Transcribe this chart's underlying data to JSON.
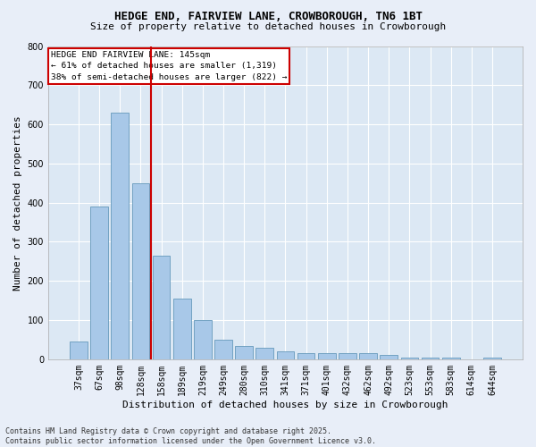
{
  "title": "HEDGE END, FAIRVIEW LANE, CROWBOROUGH, TN6 1BT",
  "subtitle": "Size of property relative to detached houses in Crowborough",
  "xlabel": "Distribution of detached houses by size in Crowborough",
  "ylabel": "Number of detached properties",
  "categories": [
    "37sqm",
    "67sqm",
    "98sqm",
    "128sqm",
    "158sqm",
    "189sqm",
    "219sqm",
    "249sqm",
    "280sqm",
    "310sqm",
    "341sqm",
    "371sqm",
    "401sqm",
    "432sqm",
    "462sqm",
    "492sqm",
    "523sqm",
    "553sqm",
    "583sqm",
    "614sqm",
    "644sqm"
  ],
  "values": [
    45,
    390,
    630,
    450,
    265,
    155,
    100,
    50,
    35,
    30,
    20,
    15,
    15,
    15,
    15,
    10,
    5,
    5,
    5,
    0,
    5
  ],
  "bar_color": "#a8c8e8",
  "bar_edge_color": "#6699bb",
  "vline_x": 3.5,
  "vline_color": "#cc0000",
  "annotation_title": "HEDGE END FAIRVIEW LANE: 145sqm",
  "annotation_line1": "← 61% of detached houses are smaller (1,319)",
  "annotation_line2": "38% of semi-detached houses are larger (822) →",
  "annotation_box_facecolor": "#ffffff",
  "annotation_box_edgecolor": "#cc0000",
  "ylim": [
    0,
    800
  ],
  "yticks": [
    0,
    100,
    200,
    300,
    400,
    500,
    600,
    700,
    800
  ],
  "fig_facecolor": "#e8eef8",
  "axes_facecolor": "#dce8f4",
  "grid_color": "#ffffff",
  "footer_line1": "Contains HM Land Registry data © Crown copyright and database right 2025.",
  "footer_line2": "Contains public sector information licensed under the Open Government Licence v3.0.",
  "title_fontsize": 9,
  "subtitle_fontsize": 8,
  "ylabel_fontsize": 8,
  "xlabel_fontsize": 8,
  "tick_fontsize": 7,
  "footer_fontsize": 6
}
